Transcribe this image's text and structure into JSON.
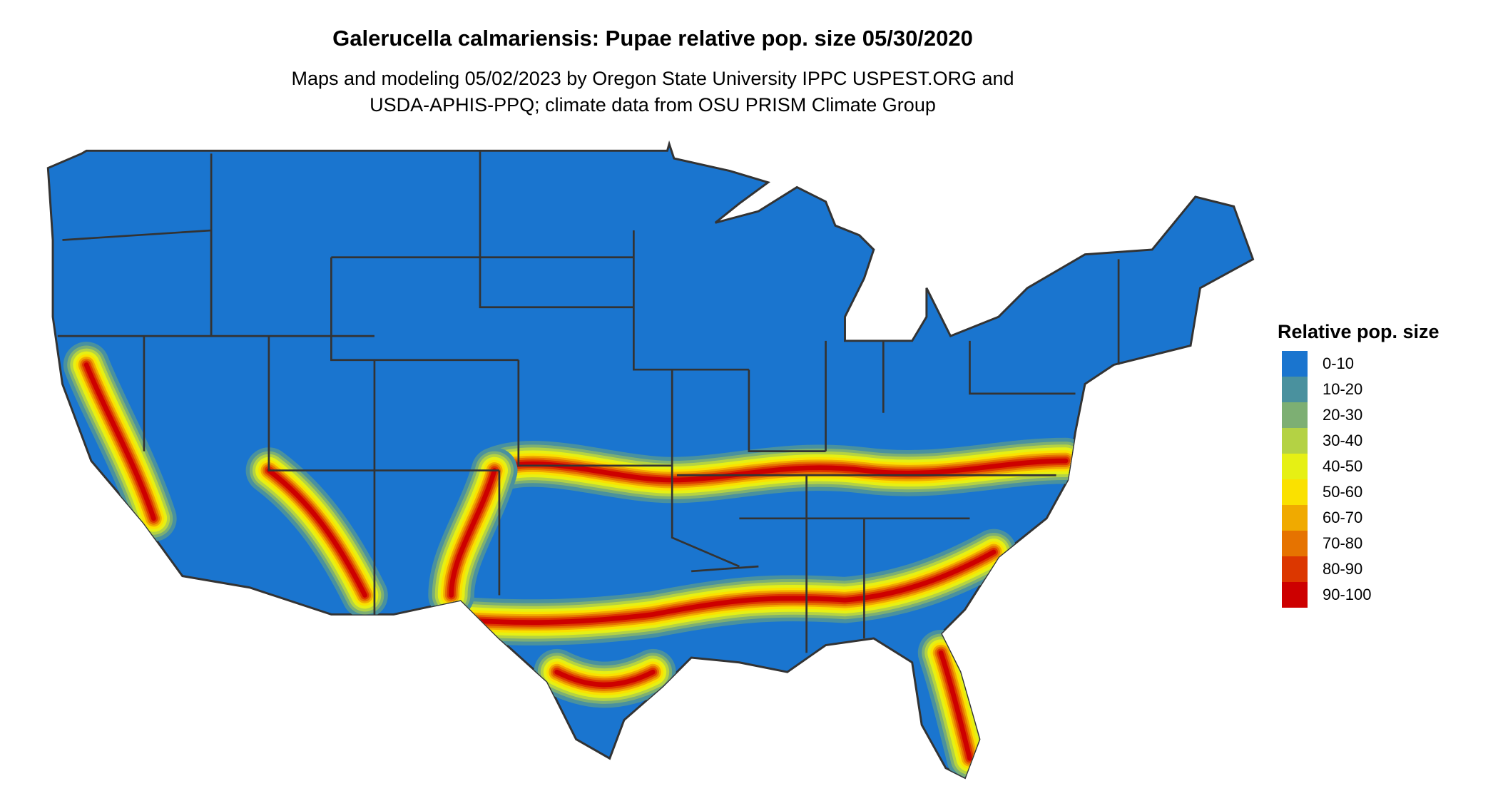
{
  "title": "Galerucella calmariensis: Pupae relative pop. size 05/30/2020",
  "subtitle_lines": [
    "Maps and modeling 05/02/2023 by Oregon State University IPPC USPEST.ORG and",
    "USDA-APHIS-PPQ; climate data from OSU PRISM Climate Group"
  ],
  "legend": {
    "title": "Relative pop. size",
    "items": [
      {
        "label": "0-10",
        "color": "#1a75cf"
      },
      {
        "label": "10-20",
        "color": "#4a919e"
      },
      {
        "label": "20-30",
        "color": "#7daf73"
      },
      {
        "label": "30-40",
        "color": "#b4d244"
      },
      {
        "label": "40-50",
        "color": "#e6f014"
      },
      {
        "label": "50-60",
        "color": "#fae100"
      },
      {
        "label": "60-70",
        "color": "#f0aa00"
      },
      {
        "label": "70-80",
        "color": "#e67300"
      },
      {
        "label": "80-90",
        "color": "#dc3700"
      },
      {
        "label": "90-100",
        "color": "#cd0000"
      }
    ]
  },
  "map": {
    "region": "Contiguous United States",
    "boundary_color": "#333333"
  }
}
